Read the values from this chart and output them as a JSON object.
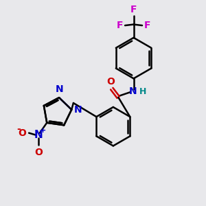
{
  "bg_color": "#e8e8eb",
  "bond_color": "#000000",
  "nitrogen_color": "#0000cc",
  "oxygen_color": "#cc0000",
  "fluorine_color": "#cc00cc",
  "hydrogen_color": "#008888",
  "bond_width": 1.8,
  "font_size": 10,
  "figsize": [
    3.0,
    3.0
  ],
  "dpi": 100,
  "xlim": [
    0,
    10
  ],
  "ylim": [
    0,
    10
  ]
}
